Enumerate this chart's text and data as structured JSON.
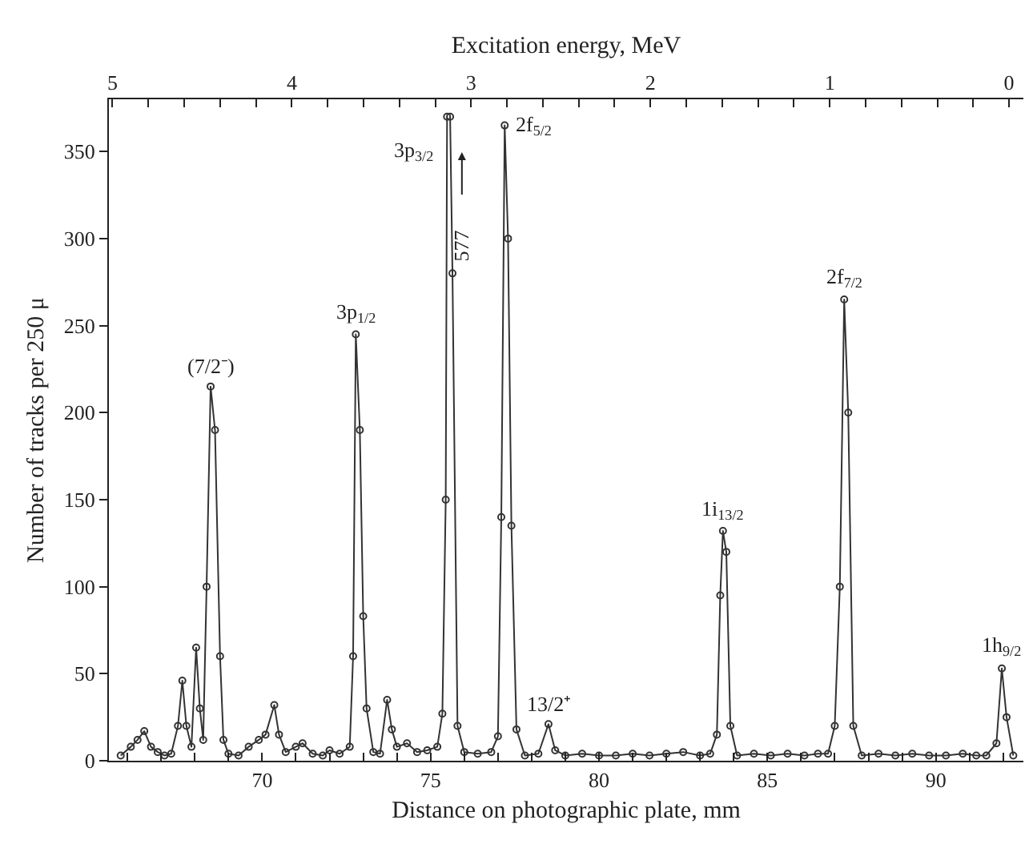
{
  "chart_data": {
    "type": "line",
    "xlabel": "Distance on photographic plate, mm",
    "x2label": "Excitation energy, MeV",
    "ylabel": "Number of tracks per 250 μ",
    "xlim": [
      65.45,
      92.6
    ],
    "ylim": [
      0,
      380
    ],
    "xticks": [
      {
        "value": 66,
        "label": null
      },
      {
        "value": 67,
        "label": null
      },
      {
        "value": 68,
        "label": null
      },
      {
        "value": 69,
        "label": null
      },
      70,
      {
        "value": 71,
        "label": null
      },
      {
        "value": 72,
        "label": null
      },
      {
        "value": 73,
        "label": null
      },
      {
        "value": 74,
        "label": null
      },
      75,
      {
        "value": 76,
        "label": null
      },
      {
        "value": 77,
        "label": null
      },
      {
        "value": 78,
        "label": null
      },
      {
        "value": 79,
        "label": null
      },
      80,
      {
        "value": 81,
        "label": null
      },
      {
        "value": 82,
        "label": null
      },
      {
        "value": 83,
        "label": null
      },
      {
        "value": 84,
        "label": null
      },
      85,
      {
        "value": 86,
        "label": null
      },
      {
        "value": 87,
        "label": null
      },
      {
        "value": 88,
        "label": null
      },
      {
        "value": 89,
        "label": null
      },
      90,
      {
        "value": 91,
        "label": null
      },
      {
        "value": 92,
        "label": null
      }
    ],
    "yticks": [
      0,
      50,
      100,
      150,
      200,
      250,
      300,
      350
    ],
    "x2lim": [
      5.02,
      -0.08
    ],
    "x2ticks": [
      5,
      {
        "value": 4.8,
        "label": null
      },
      {
        "value": 4.6,
        "label": null
      },
      {
        "value": 4.4,
        "label": null
      },
      {
        "value": 4.2,
        "label": null
      },
      4,
      {
        "value": 3.8,
        "label": null
      },
      {
        "value": 3.6,
        "label": null
      },
      {
        "value": 3.4,
        "label": null
      },
      {
        "value": 3.2,
        "label": null
      },
      3,
      {
        "value": 2.8,
        "label": null
      },
      {
        "value": 2.6,
        "label": null
      },
      {
        "value": 2.4,
        "label": null
      },
      {
        "value": 2.2,
        "label": null
      },
      2,
      {
        "value": 1.8,
        "label": null
      },
      {
        "value": 1.6,
        "label": null
      },
      {
        "value": 1.4,
        "label": null
      },
      {
        "value": 1.2,
        "label": null
      },
      1,
      {
        "value": 0.8,
        "label": null
      },
      {
        "value": 0.6,
        "label": null
      },
      {
        "value": 0.4,
        "label": null
      },
      {
        "value": 0.2,
        "label": null
      },
      0
    ],
    "marker": "circle",
    "line_style": "solid",
    "series": [
      {
        "color": "#333333",
        "x": [
          65.8,
          66.1,
          66.3,
          66.5,
          66.7,
          66.9,
          67.1,
          67.3,
          67.5,
          67.63,
          67.75,
          67.9,
          68.04,
          68.15,
          68.25,
          68.35,
          68.47,
          68.6,
          68.75,
          68.85,
          69.0,
          69.3,
          69.6,
          69.9,
          70.1,
          70.36,
          70.5,
          70.7,
          71.0,
          71.2,
          71.5,
          71.8,
          72.0,
          72.3,
          72.6,
          72.7,
          72.78,
          72.9,
          73.0,
          73.1,
          73.3,
          73.5,
          73.71,
          73.85,
          74.0,
          74.3,
          74.6,
          74.9,
          75.2,
          75.35,
          75.45,
          75.49,
          75.53,
          75.58,
          75.65,
          75.8,
          76.0,
          76.4,
          76.8,
          77.0,
          77.1,
          77.2,
          77.3,
          77.4,
          77.55,
          77.8,
          78.2,
          78.5,
          78.7,
          79.0,
          79.5,
          80.0,
          80.5,
          81.0,
          81.5,
          82.0,
          82.5,
          83.0,
          83.3,
          83.5,
          83.6,
          83.68,
          83.78,
          83.9,
          84.1,
          84.6,
          85.1,
          85.6,
          86.1,
          86.5,
          86.8,
          87.0,
          87.15,
          87.28,
          87.4,
          87.55,
          87.8,
          88.3,
          88.8,
          89.3,
          89.8,
          90.3,
          90.8,
          91.2,
          91.5,
          91.8,
          91.96,
          92.1,
          92.3
        ],
        "values": [
          3,
          8,
          12,
          17,
          8,
          5,
          3,
          4,
          20,
          46,
          20,
          8,
          65,
          30,
          12,
          100,
          215,
          190,
          60,
          12,
          4,
          3,
          8,
          12,
          15,
          32,
          15,
          5,
          8,
          10,
          4,
          3,
          6,
          4,
          8,
          60,
          245,
          190,
          83,
          30,
          5,
          4,
          35,
          18,
          8,
          10,
          5,
          6,
          8,
          27,
          150,
          370,
          null,
          370,
          280,
          20,
          5,
          4,
          5,
          14,
          140,
          365,
          300,
          135,
          18,
          3,
          4,
          21,
          6,
          3,
          4,
          3,
          3,
          4,
          3,
          4,
          5,
          3,
          4,
          15,
          95,
          132,
          120,
          20,
          3,
          4,
          3,
          4,
          3,
          4,
          4,
          20,
          100,
          265,
          200,
          20,
          3,
          4,
          3,
          4,
          3,
          3,
          4,
          3,
          3,
          10,
          53,
          25,
          3
        ]
      }
    ],
    "annotations": [
      {
        "text": "(7/2⁻)",
        "x": 68.47,
        "y": 215
      },
      {
        "text": "3p$_{1/2}$",
        "x": 72.78,
        "y": 245
      },
      {
        "text": "3p$_{3/2}$",
        "x": 75.53,
        "y": 350
      },
      "577",
      {
        "text": "2f$_{5/2}$",
        "x": 77.2,
        "y": 365
      },
      {
        "text": "13/2⁺",
        "x": 78.5,
        "y": 21
      },
      {
        "text": "1i$_{13/2}$",
        "x": 83.68,
        "y": 132
      },
      {
        "text": "2f$_{7/2}$",
        "x": 87.28,
        "y": 265
      },
      {
        "text": "1h$_{9/2}$",
        "x": 91.96,
        "y": 53
      }
    ]
  }
}
